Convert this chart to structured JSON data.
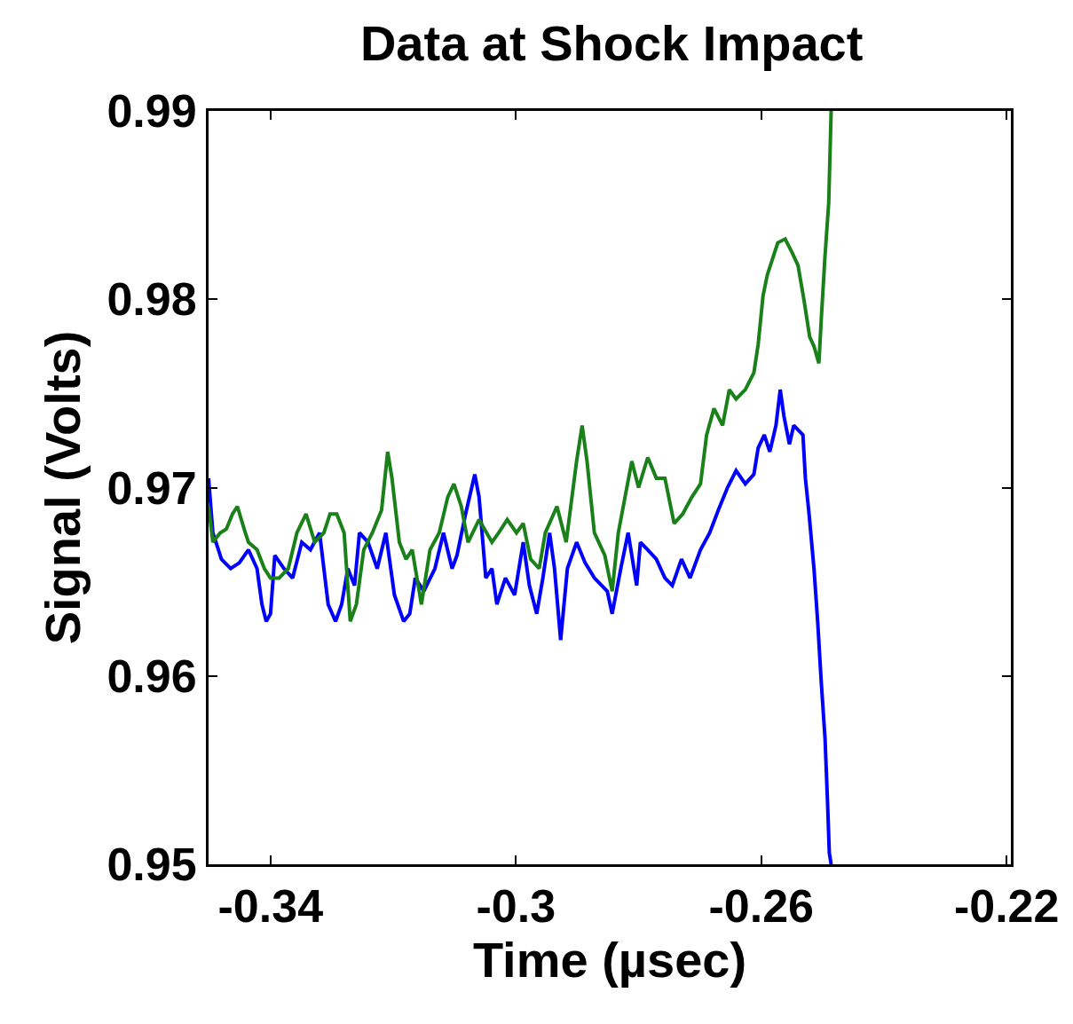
{
  "chart_data": {
    "type": "line",
    "title": "Data at Shock Impact",
    "xlabel": "Time (µsec)",
    "ylabel": "Signal (Volts)",
    "xlim": [
      -0.3501,
      -0.2193
    ],
    "xticks": [
      -0.34,
      -0.3,
      -0.26,
      -0.22
    ],
    "ylim": [
      0.95,
      0.99
    ],
    "yticks": [
      0.95,
      0.96,
      0.97,
      0.98,
      0.99
    ],
    "marker": "none",
    "line_style": "solid",
    "series": [
      {
        "color": "#0000ff",
        "x": [
          -0.3501,
          -0.3494,
          -0.348,
          -0.3465,
          -0.3451,
          -0.3436,
          -0.3422,
          -0.3414,
          -0.3407,
          -0.34,
          -0.3393,
          -0.3378,
          -0.3364,
          -0.3349,
          -0.3335,
          -0.332,
          -0.3306,
          -0.3294,
          -0.3284,
          -0.3274,
          -0.3263,
          -0.3255,
          -0.3241,
          -0.3226,
          -0.3212,
          -0.3198,
          -0.3183,
          -0.3173,
          -0.3164,
          -0.315,
          -0.3132,
          -0.3118,
          -0.3104,
          -0.3096,
          -0.3082,
          -0.3067,
          -0.306,
          -0.3049,
          -0.3039,
          -0.3031,
          -0.3017,
          -0.3002,
          -0.2988,
          -0.2978,
          -0.2966,
          -0.2956,
          -0.2945,
          -0.2937,
          -0.2927,
          -0.2916,
          -0.2901,
          -0.2887,
          -0.2872,
          -0.2851,
          -0.2843,
          -0.2829,
          -0.2817,
          -0.2803,
          -0.2797,
          -0.2785,
          -0.2771,
          -0.2757,
          -0.2745,
          -0.273,
          -0.2716,
          -0.2699,
          -0.2684,
          -0.267,
          -0.2655,
          -0.2641,
          -0.2626,
          -0.2612,
          -0.2605,
          -0.2595,
          -0.2586,
          -0.2576,
          -0.2569,
          -0.2563,
          -0.2554,
          -0.2547,
          -0.2532,
          -0.2528,
          -0.2522,
          -0.2514,
          -0.2508,
          -0.2502,
          -0.2496,
          -0.2492,
          -0.2489,
          -0.2486
        ],
        "values": [
          0.9705,
          0.9676,
          0.9662,
          0.9657,
          0.966,
          0.9667,
          0.9657,
          0.9638,
          0.9629,
          0.9633,
          0.9664,
          0.9657,
          0.9652,
          0.9671,
          0.9667,
          0.9676,
          0.9638,
          0.9629,
          0.9638,
          0.9657,
          0.9648,
          0.9676,
          0.9671,
          0.9657,
          0.9676,
          0.9643,
          0.9629,
          0.9633,
          0.9652,
          0.9645,
          0.9657,
          0.9676,
          0.9657,
          0.9664,
          0.9686,
          0.9707,
          0.9695,
          0.9652,
          0.9657,
          0.9638,
          0.9652,
          0.9643,
          0.9671,
          0.9648,
          0.9633,
          0.9652,
          0.9676,
          0.9657,
          0.9619,
          0.9657,
          0.9671,
          0.966,
          0.9652,
          0.9645,
          0.9633,
          0.9657,
          0.9676,
          0.9648,
          0.9671,
          0.9667,
          0.9662,
          0.9652,
          0.9648,
          0.9662,
          0.9652,
          0.9667,
          0.9676,
          0.9688,
          0.97,
          0.9709,
          0.9702,
          0.9707,
          0.9721,
          0.9728,
          0.9719,
          0.9733,
          0.9752,
          0.9738,
          0.9723,
          0.9733,
          0.9728,
          0.9705,
          0.9686,
          0.9657,
          0.9629,
          0.9596,
          0.9567,
          0.9534,
          0.9506,
          0.95
        ]
      },
      {
        "color": "#1a801a",
        "x": [
          -0.3501,
          -0.3494,
          -0.3482,
          -0.3472,
          -0.3462,
          -0.3454,
          -0.3443,
          -0.3436,
          -0.3422,
          -0.341,
          -0.34,
          -0.3386,
          -0.3371,
          -0.3357,
          -0.3342,
          -0.3328,
          -0.3313,
          -0.3303,
          -0.3292,
          -0.328,
          -0.327,
          -0.326,
          -0.3248,
          -0.3234,
          -0.3219,
          -0.3209,
          -0.3202,
          -0.319,
          -0.3179,
          -0.3169,
          -0.3154,
          -0.314,
          -0.3125,
          -0.3111,
          -0.3101,
          -0.3089,
          -0.3078,
          -0.306,
          -0.3039,
          -0.3028,
          -0.3014,
          -0.2999,
          -0.2988,
          -0.2976,
          -0.2962,
          -0.2952,
          -0.2933,
          -0.2918,
          -0.2901,
          -0.2892,
          -0.2884,
          -0.2872,
          -0.2855,
          -0.2843,
          -0.2833,
          -0.2822,
          -0.2811,
          -0.28,
          -0.2785,
          -0.2771,
          -0.2757,
          -0.2742,
          -0.2728,
          -0.2713,
          -0.2699,
          -0.2689,
          -0.2677,
          -0.2663,
          -0.2652,
          -0.2641,
          -0.2626,
          -0.2612,
          -0.2605,
          -0.2597,
          -0.259,
          -0.258,
          -0.2573,
          -0.2561,
          -0.255,
          -0.254,
          -0.253,
          -0.2521,
          -0.2514,
          -0.2506,
          -0.2502,
          -0.2496,
          -0.249,
          -0.2486
        ],
        "values": [
          0.969,
          0.9671,
          0.9676,
          0.9678,
          0.9686,
          0.969,
          0.9678,
          0.9671,
          0.9667,
          0.9657,
          0.9652,
          0.9652,
          0.9657,
          0.9676,
          0.9686,
          0.9671,
          0.9676,
          0.9686,
          0.9686,
          0.9676,
          0.9629,
          0.9638,
          0.9667,
          0.9676,
          0.9688,
          0.9719,
          0.9705,
          0.9671,
          0.9662,
          0.9667,
          0.9638,
          0.9667,
          0.9676,
          0.9695,
          0.9702,
          0.969,
          0.9671,
          0.9683,
          0.9671,
          0.9676,
          0.9683,
          0.9676,
          0.9681,
          0.9662,
          0.9657,
          0.9676,
          0.969,
          0.9671,
          0.9714,
          0.9733,
          0.9714,
          0.9676,
          0.9664,
          0.9645,
          0.9676,
          0.9695,
          0.9714,
          0.97,
          0.9716,
          0.9705,
          0.9705,
          0.9681,
          0.9686,
          0.9695,
          0.9702,
          0.9728,
          0.9742,
          0.9733,
          0.9752,
          0.9747,
          0.9752,
          0.9761,
          0.9776,
          0.9802,
          0.9813,
          0.9823,
          0.983,
          0.9832,
          0.9825,
          0.9818,
          0.9799,
          0.978,
          0.9775,
          0.9766,
          0.979,
          0.9823,
          0.9851,
          0.99
        ]
      }
    ]
  }
}
